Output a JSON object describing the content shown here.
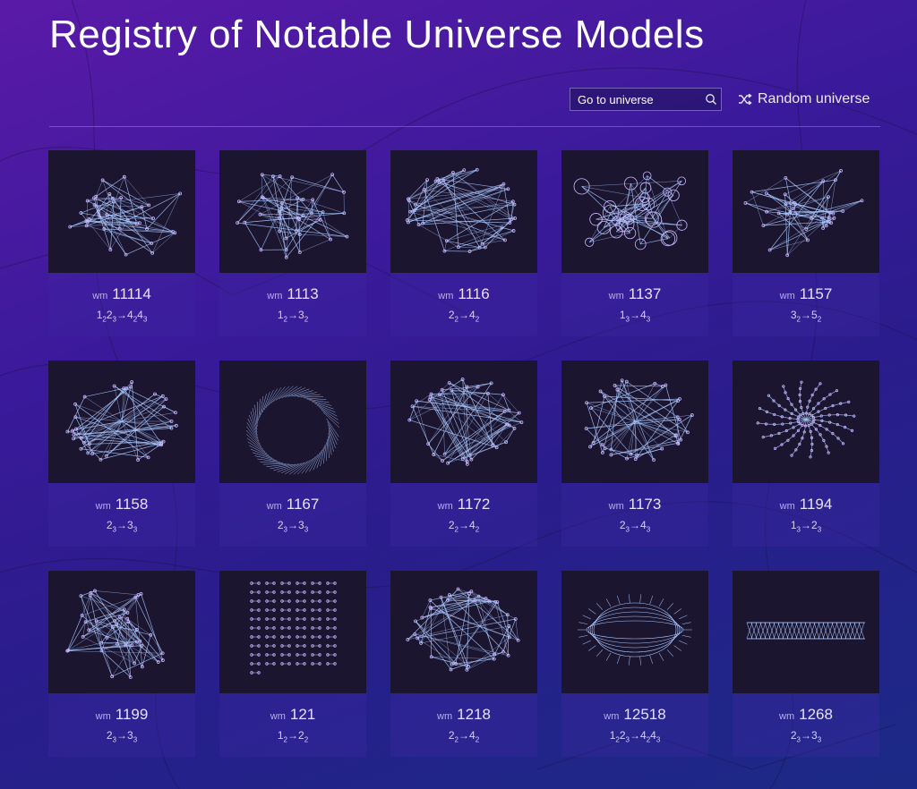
{
  "page": {
    "title": "Registry of Notable Universe Models",
    "colors": {
      "accent": "#a9c8ff",
      "card_bg": "#1c1530",
      "node_fill": "#c9b8ff"
    }
  },
  "toolbar": {
    "search_placeholder": "Go to universe",
    "search_icon": "search-icon",
    "random_label": "Random universe",
    "random_icon": "shuffle-icon"
  },
  "universes": [
    {
      "prefix": "wm",
      "id": "11114",
      "rule": [
        [
          "1",
          "2"
        ],
        [
          "2",
          "3"
        ],
        "→",
        [
          "4",
          "2"
        ],
        [
          "4",
          "3"
        ]
      ],
      "shape": "hubs"
    },
    {
      "prefix": "wm",
      "id": "1113",
      "rule": [
        [
          "1",
          "2"
        ],
        "→",
        [
          "3",
          "2"
        ]
      ],
      "shape": "tree"
    },
    {
      "prefix": "wm",
      "id": "1116",
      "rule": [
        [
          "2",
          "2"
        ],
        "→",
        [
          "4",
          "2"
        ]
      ],
      "shape": "mesh"
    },
    {
      "prefix": "wm",
      "id": "1137",
      "rule": [
        [
          "1",
          "3"
        ],
        "→",
        [
          "4",
          "3"
        ]
      ],
      "shape": "bubbles"
    },
    {
      "prefix": "wm",
      "id": "1157",
      "rule": [
        [
          "3",
          "2"
        ],
        "→",
        [
          "5",
          "2"
        ]
      ],
      "shape": "tree"
    },
    {
      "prefix": "wm",
      "id": "1158",
      "rule": [
        [
          "2",
          "3"
        ],
        "→",
        [
          "3",
          "3"
        ]
      ],
      "shape": "blob"
    },
    {
      "prefix": "wm",
      "id": "1167",
      "rule": [
        [
          "2",
          "3"
        ],
        "→",
        [
          "3",
          "3"
        ]
      ],
      "shape": "ring"
    },
    {
      "prefix": "wm",
      "id": "1172",
      "rule": [
        [
          "2",
          "2"
        ],
        "→",
        [
          "4",
          "2"
        ]
      ],
      "shape": "mesh"
    },
    {
      "prefix": "wm",
      "id": "1173",
      "rule": [
        [
          "2",
          "3"
        ],
        "→",
        [
          "4",
          "3"
        ]
      ],
      "shape": "wheel"
    },
    {
      "prefix": "wm",
      "id": "1194",
      "rule": [
        [
          "1",
          "3"
        ],
        "→",
        [
          "2",
          "3"
        ]
      ],
      "shape": "star"
    },
    {
      "prefix": "wm",
      "id": "1199",
      "rule": [
        [
          "2",
          "3"
        ],
        "→",
        [
          "3",
          "3"
        ]
      ],
      "shape": "branches"
    },
    {
      "prefix": "wm",
      "id": "121",
      "rule": [
        [
          "1",
          "2"
        ],
        "→",
        [
          "2",
          "2"
        ]
      ],
      "shape": "dots"
    },
    {
      "prefix": "wm",
      "id": "1218",
      "rule": [
        [
          "2",
          "2"
        ],
        "→",
        [
          "4",
          "2"
        ]
      ],
      "shape": "mesh"
    },
    {
      "prefix": "wm",
      "id": "12518",
      "rule": [
        [
          "1",
          "2"
        ],
        [
          "2",
          "3"
        ],
        "→",
        [
          "4",
          "2"
        ],
        [
          "4",
          "3"
        ]
      ],
      "shape": "cylinder"
    },
    {
      "prefix": "wm",
      "id": "1268",
      "rule": [
        [
          "2",
          "3"
        ],
        "→",
        [
          "3",
          "3"
        ]
      ],
      "shape": "tube"
    }
  ]
}
